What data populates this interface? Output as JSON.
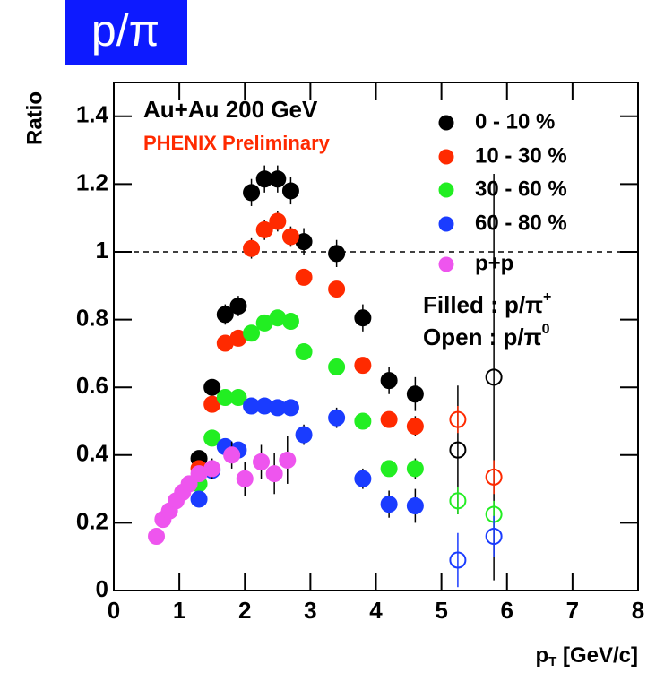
{
  "chart_data": {
    "type": "scatter",
    "title": "p/π",
    "y_label": "Ratio",
    "x_label": [
      "p",
      "T",
      " [GeV/c]"
    ],
    "xlim": [
      0,
      8
    ],
    "ylim": [
      0,
      1.5
    ],
    "xticks": [
      0,
      1,
      2,
      3,
      4,
      5,
      6,
      7,
      8
    ],
    "yticks": [
      0,
      0.2,
      0.4,
      0.6,
      0.8,
      1,
      1.2,
      1.4
    ],
    "reference_line": 1,
    "annotations": {
      "system": "Au+Au 200 GeV",
      "experiment": "PHENIX Preliminary",
      "filled": [
        "Filled : p/π",
        "+"
      ],
      "open": [
        "Open :  p/π",
        "0"
      ]
    },
    "series": [
      {
        "name": "0 - 10 %",
        "color": "#000000",
        "x": [
          1.3,
          1.5,
          1.7,
          1.9,
          2.1,
          2.3,
          2.5,
          2.7,
          2.9,
          3.4,
          3.8,
          4.2,
          4.6
        ],
        "values": [
          0.39,
          0.6,
          0.815,
          0.84,
          1.175,
          1.215,
          1.215,
          1.18,
          1.03,
          0.995,
          0.805,
          0.62,
          0.58
        ],
        "errors": [
          0.02,
          0.02,
          0.03,
          0.03,
          0.04,
          0.04,
          0.04,
          0.04,
          0.04,
          0.04,
          0.04,
          0.04,
          0.05
        ],
        "open": {
          "x": [
            5.25,
            5.8
          ],
          "values": [
            0.415,
            0.63
          ],
          "errors": [
            0.19,
            0.6
          ]
        }
      },
      {
        "name": "10 - 30 %",
        "color": "#ff2a00",
        "x": [
          1.3,
          1.5,
          1.7,
          1.9,
          2.1,
          2.3,
          2.5,
          2.7,
          2.9,
          3.4,
          3.8,
          4.2,
          4.6
        ],
        "values": [
          0.36,
          0.55,
          0.73,
          0.745,
          1.01,
          1.065,
          1.09,
          1.045,
          0.925,
          0.89,
          0.665,
          0.505,
          0.485
        ],
        "errors": [
          0.02,
          0.02,
          0.02,
          0.02,
          0.03,
          0.03,
          0.03,
          0.03,
          0.02,
          0.02,
          0.02,
          0.02,
          0.03
        ],
        "open": {
          "x": [
            5.25,
            5.8
          ],
          "values": [
            0.505,
            0.335
          ],
          "errors": [
            0.04,
            0.05
          ]
        }
      },
      {
        "name": "30 - 60 %",
        "color": "#22ee22",
        "x": [
          1.3,
          1.5,
          1.7,
          1.9,
          2.1,
          2.3,
          2.5,
          2.7,
          2.9,
          3.4,
          3.8,
          4.2,
          4.6
        ],
        "values": [
          0.315,
          0.45,
          0.57,
          0.57,
          0.76,
          0.79,
          0.805,
          0.795,
          0.705,
          0.66,
          0.5,
          0.36,
          0.36
        ],
        "errors": [
          0.02,
          0.02,
          0.02,
          0.02,
          0.02,
          0.02,
          0.02,
          0.02,
          0.02,
          0.02,
          0.02,
          0.02,
          0.03
        ],
        "open": {
          "x": [
            5.25,
            5.8
          ],
          "values": [
            0.265,
            0.225
          ],
          "errors": [
            0.04,
            0.04
          ]
        }
      },
      {
        "name": "60 - 80 %",
        "color": "#1a3cff",
        "x": [
          1.3,
          1.5,
          1.7,
          1.9,
          2.1,
          2.3,
          2.5,
          2.7,
          2.9,
          3.4,
          3.8,
          4.2,
          4.6
        ],
        "values": [
          0.27,
          0.355,
          0.425,
          0.415,
          0.545,
          0.545,
          0.54,
          0.54,
          0.46,
          0.51,
          0.33,
          0.255,
          0.25
        ],
        "errors": [
          0.02,
          0.02,
          0.02,
          0.02,
          0.02,
          0.02,
          0.02,
          0.02,
          0.03,
          0.03,
          0.03,
          0.04,
          0.05
        ],
        "open": {
          "x": [
            5.25,
            5.8
          ],
          "values": [
            0.09,
            0.16
          ],
          "errors": [
            0.08,
            0.06
          ]
        }
      },
      {
        "name": "p+p",
        "color": "#ee55ee",
        "x": [
          0.65,
          0.75,
          0.85,
          0.95,
          1.05,
          1.15,
          1.3,
          1.5,
          1.8,
          2.0,
          2.25,
          2.45,
          2.65
        ],
        "values": [
          0.16,
          0.21,
          0.235,
          0.265,
          0.29,
          0.315,
          0.345,
          0.36,
          0.4,
          0.33,
          0.38,
          0.345,
          0.385
        ],
        "errors": [
          0.01,
          0.01,
          0.01,
          0.01,
          0.01,
          0.015,
          0.02,
          0.03,
          0.04,
          0.05,
          0.05,
          0.06,
          0.07
        ]
      }
    ]
  }
}
